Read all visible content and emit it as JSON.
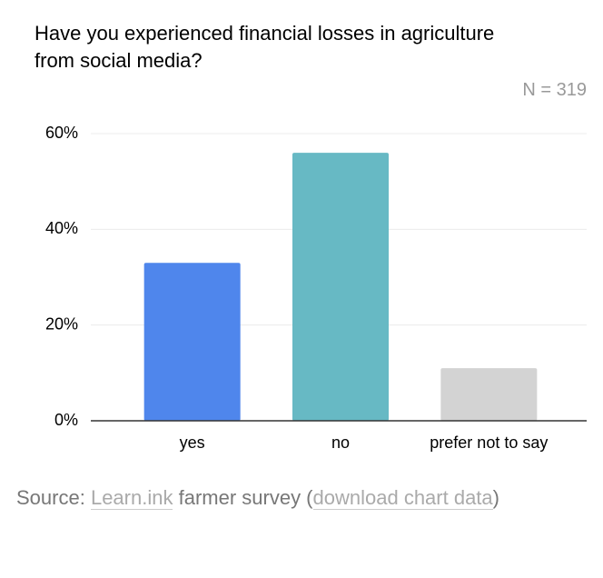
{
  "chart_data": {
    "type": "bar",
    "title": "Have you experienced financial losses in agriculture from social media?",
    "subtitle": "N = 319",
    "categories": [
      "yes",
      "no",
      "prefer not to say"
    ],
    "values": [
      33,
      56,
      11
    ],
    "colors": [
      "#4f86ec",
      "#67b9c4",
      "#d3d3d3"
    ],
    "ylim": [
      0,
      60
    ],
    "yticks": [
      {
        "value": 0,
        "label": "0%"
      },
      {
        "value": 20,
        "label": "20%"
      },
      {
        "value": 40,
        "label": "40%"
      },
      {
        "value": 60,
        "label": "60%"
      }
    ],
    "grid": true
  },
  "source": {
    "prefix": "Source:",
    "link1": "Learn.ink",
    "middle": "farmer survey (",
    "link2": "download chart data",
    "suffix": ")"
  }
}
